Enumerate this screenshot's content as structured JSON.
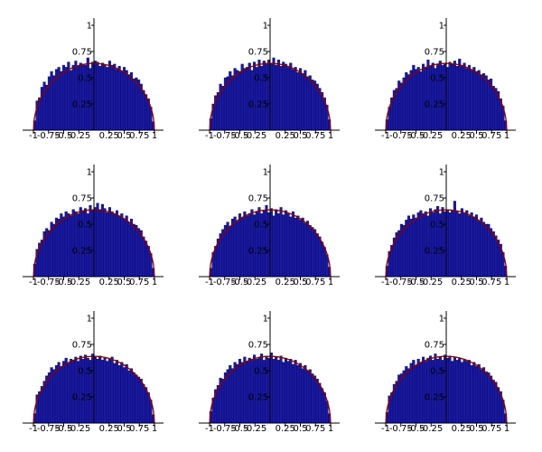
{
  "figure": {
    "background": "#ffffff",
    "bar_color": "#1a1a9e",
    "bar_edge_color": "#00006b",
    "curve_color": "#8b0000",
    "axis_color": "#000000"
  },
  "chart_data": [
    {
      "type": "bar",
      "xlim": [
        -1,
        1
      ],
      "ylim": [
        0,
        1
      ],
      "xticks": [
        "-1",
        "-0.75",
        "-0.5",
        "-0.25",
        "0.25",
        "0.5",
        "0.75",
        "1"
      ],
      "xtick_values": [
        -1,
        -0.75,
        -0.5,
        -0.25,
        0.25,
        0.5,
        0.75,
        1
      ],
      "yticks": [
        "0.25",
        "0.5",
        "0.75",
        "1"
      ],
      "ytick_values": [
        0.25,
        0.5,
        0.75,
        1
      ],
      "bins": 50,
      "values": [
        0.09,
        0.28,
        0.31,
        0.41,
        0.46,
        0.43,
        0.51,
        0.56,
        0.52,
        0.58,
        0.6,
        0.56,
        0.62,
        0.6,
        0.65,
        0.57,
        0.62,
        0.66,
        0.61,
        0.64,
        0.63,
        0.62,
        0.69,
        0.59,
        0.65,
        0.66,
        0.65,
        0.61,
        0.64,
        0.62,
        0.6,
        0.66,
        0.62,
        0.63,
        0.58,
        0.61,
        0.56,
        0.6,
        0.57,
        0.53,
        0.55,
        0.49,
        0.5,
        0.48,
        0.44,
        0.38,
        0.34,
        0.3,
        0.22,
        0.08
      ],
      "curve": "semicircle"
    },
    {
      "type": "bar",
      "xlim": [
        -1,
        1
      ],
      "ylim": [
        0,
        1
      ],
      "xticks": [
        "-1",
        "-0.75",
        "-0.5",
        "-0.25",
        "0.25",
        "0.5",
        "0.75",
        "1"
      ],
      "xtick_values": [
        -1,
        -0.75,
        -0.5,
        -0.25,
        0.25,
        0.5,
        0.75,
        1
      ],
      "yticks": [
        "0.25",
        "0.5",
        "0.75",
        "1"
      ],
      "ytick_values": [
        0.25,
        0.5,
        0.75,
        1
      ],
      "bins": 50,
      "values": [
        0.11,
        0.25,
        0.33,
        0.36,
        0.44,
        0.42,
        0.5,
        0.51,
        0.56,
        0.52,
        0.59,
        0.57,
        0.56,
        0.63,
        0.59,
        0.6,
        0.64,
        0.57,
        0.65,
        0.6,
        0.67,
        0.61,
        0.66,
        0.64,
        0.67,
        0.64,
        0.69,
        0.62,
        0.67,
        0.61,
        0.65,
        0.63,
        0.6,
        0.64,
        0.58,
        0.6,
        0.55,
        0.59,
        0.54,
        0.57,
        0.51,
        0.52,
        0.48,
        0.47,
        0.44,
        0.4,
        0.36,
        0.31,
        0.24,
        0.1
      ],
      "curve": "semicircle"
    },
    {
      "type": "bar",
      "xlim": [
        -1,
        1
      ],
      "ylim": [
        0,
        1
      ],
      "xticks": [
        "-1",
        "-0.75",
        "-0.5",
        "-0.25",
        "0.25",
        "0.5",
        "0.75",
        "1"
      ],
      "xtick_values": [
        -1,
        -0.75,
        -0.5,
        -0.25,
        0.25,
        0.5,
        0.75,
        1
      ],
      "yticks": [
        "0.25",
        "0.5",
        "0.75",
        "1"
      ],
      "ytick_values": [
        0.25,
        0.5,
        0.75,
        1
      ],
      "bins": 50,
      "values": [
        0.1,
        0.22,
        0.31,
        0.38,
        0.4,
        0.47,
        0.45,
        0.5,
        0.55,
        0.53,
        0.57,
        0.62,
        0.58,
        0.6,
        0.56,
        0.63,
        0.6,
        0.67,
        0.61,
        0.64,
        0.59,
        0.63,
        0.66,
        0.62,
        0.64,
        0.6,
        0.65,
        0.63,
        0.66,
        0.61,
        0.68,
        0.62,
        0.64,
        0.59,
        0.62,
        0.57,
        0.6,
        0.56,
        0.57,
        0.53,
        0.54,
        0.52,
        0.48,
        0.49,
        0.42,
        0.4,
        0.37,
        0.3,
        0.23,
        0.09
      ],
      "curve": "semicircle"
    },
    {
      "type": "bar",
      "xlim": [
        -1,
        1
      ],
      "ylim": [
        0,
        1
      ],
      "xticks": [
        "-1",
        "-0.75",
        "-0.5",
        "-0.25",
        "0.25",
        "0.5",
        "0.75",
        "1"
      ],
      "xtick_values": [
        -1,
        -0.75,
        -0.5,
        -0.25,
        0.25,
        0.5,
        0.75,
        1
      ],
      "yticks": [
        "0.25",
        "0.5",
        "0.75",
        "1"
      ],
      "ytick_values": [
        0.25,
        0.5,
        0.75,
        1
      ],
      "bins": 50,
      "values": [
        0.12,
        0.26,
        0.32,
        0.35,
        0.43,
        0.46,
        0.44,
        0.52,
        0.5,
        0.56,
        0.55,
        0.6,
        0.57,
        0.62,
        0.6,
        0.58,
        0.64,
        0.62,
        0.6,
        0.66,
        0.63,
        0.65,
        0.6,
        0.68,
        0.63,
        0.66,
        0.7,
        0.64,
        0.69,
        0.65,
        0.61,
        0.66,
        0.62,
        0.6,
        0.63,
        0.58,
        0.6,
        0.55,
        0.58,
        0.52,
        0.55,
        0.5,
        0.49,
        0.46,
        0.44,
        0.38,
        0.34,
        0.29,
        0.22,
        0.08
      ],
      "curve": "semicircle"
    },
    {
      "type": "bar",
      "xlim": [
        -1,
        1
      ],
      "ylim": [
        0,
        1
      ],
      "xticks": [
        "-1",
        "-0.75",
        "-0.5",
        "-0.25",
        "0.25",
        "0.5",
        "0.75",
        "1"
      ],
      "xtick_values": [
        -1,
        -0.75,
        -0.5,
        -0.25,
        0.25,
        0.5,
        0.75,
        1
      ],
      "yticks": [
        "0.25",
        "0.5",
        "0.75",
        "1"
      ],
      "ytick_values": [
        0.25,
        0.5,
        0.75,
        1
      ],
      "bins": 50,
      "values": [
        0.08,
        0.23,
        0.29,
        0.36,
        0.41,
        0.45,
        0.49,
        0.52,
        0.48,
        0.55,
        0.57,
        0.53,
        0.6,
        0.56,
        0.62,
        0.58,
        0.6,
        0.64,
        0.59,
        0.62,
        0.66,
        0.6,
        0.63,
        0.68,
        0.61,
        0.65,
        0.58,
        0.64,
        0.6,
        0.66,
        0.59,
        0.63,
        0.6,
        0.57,
        0.62,
        0.56,
        0.58,
        0.54,
        0.56,
        0.51,
        0.53,
        0.49,
        0.47,
        0.45,
        0.41,
        0.38,
        0.33,
        0.28,
        0.21,
        0.09
      ],
      "curve": "semicircle"
    },
    {
      "type": "bar",
      "xlim": [
        -1,
        1
      ],
      "ylim": [
        0,
        1
      ],
      "xticks": [
        "-1",
        "-0.75",
        "-0.5",
        "-0.25",
        "0.25",
        "0.5",
        "0.75",
        "1"
      ],
      "xtick_values": [
        -1,
        -0.75,
        -0.5,
        -0.25,
        0.25,
        0.5,
        0.75,
        1
      ],
      "yticks": [
        "0.25",
        "0.5",
        "0.75",
        "1"
      ],
      "ytick_values": [
        0.25,
        0.5,
        0.75,
        1
      ],
      "bins": 50,
      "values": [
        0.1,
        0.24,
        0.3,
        0.37,
        0.42,
        0.44,
        0.5,
        0.49,
        0.54,
        0.58,
        0.55,
        0.59,
        0.56,
        0.61,
        0.63,
        0.6,
        0.62,
        0.58,
        0.65,
        0.61,
        0.64,
        0.67,
        0.6,
        0.66,
        0.62,
        0.64,
        0.61,
        0.63,
        0.72,
        0.62,
        0.6,
        0.65,
        0.61,
        0.63,
        0.58,
        0.61,
        0.57,
        0.59,
        0.53,
        0.56,
        0.52,
        0.5,
        0.5,
        0.46,
        0.43,
        0.39,
        0.35,
        0.31,
        0.23,
        0.1
      ],
      "curve": "semicircle"
    },
    {
      "type": "bar",
      "xlim": [
        -1,
        1
      ],
      "ylim": [
        0,
        1
      ],
      "xticks": [
        "-1",
        "-0.75",
        "-0.5",
        "-0.25",
        "0.25",
        "0.5",
        "0.75",
        "1"
      ],
      "xtick_values": [
        -1,
        -0.75,
        -0.5,
        -0.25,
        0.25,
        0.5,
        0.75,
        1
      ],
      "yticks": [
        "0.25",
        "0.5",
        "0.75",
        "1"
      ],
      "ytick_values": [
        0.25,
        0.5,
        0.75,
        1
      ],
      "bins": 50,
      "values": [
        0.09,
        0.27,
        0.3,
        0.35,
        0.4,
        0.45,
        0.48,
        0.53,
        0.51,
        0.55,
        0.58,
        0.54,
        0.59,
        0.62,
        0.57,
        0.61,
        0.6,
        0.63,
        0.59,
        0.64,
        0.61,
        0.65,
        0.62,
        0.6,
        0.66,
        0.63,
        0.61,
        0.64,
        0.6,
        0.62,
        0.59,
        0.61,
        0.63,
        0.57,
        0.6,
        0.55,
        0.58,
        0.53,
        0.56,
        0.5,
        0.52,
        0.48,
        0.46,
        0.44,
        0.42,
        0.37,
        0.34,
        0.29,
        0.22,
        0.08
      ],
      "curve": "semicircle"
    },
    {
      "type": "bar",
      "xlim": [
        -1,
        1
      ],
      "ylim": [
        0,
        1
      ],
      "xticks": [
        "-1",
        "-0.75",
        "-0.5",
        "-0.25",
        "0.25",
        "0.5",
        "0.75",
        "1"
      ],
      "xtick_values": [
        -1,
        -0.75,
        -0.5,
        -0.25,
        0.25,
        0.5,
        0.75,
        1
      ],
      "yticks": [
        "0.25",
        "0.5",
        "0.75",
        "1"
      ],
      "ytick_values": [
        0.25,
        0.5,
        0.75,
        1
      ],
      "bins": 50,
      "values": [
        0.11,
        0.24,
        0.32,
        0.36,
        0.43,
        0.42,
        0.48,
        0.51,
        0.55,
        0.52,
        0.58,
        0.56,
        0.61,
        0.58,
        0.63,
        0.59,
        0.62,
        0.6,
        0.65,
        0.61,
        0.63,
        0.66,
        0.6,
        0.64,
        0.62,
        0.67,
        0.61,
        0.63,
        0.6,
        0.64,
        0.58,
        0.62,
        0.59,
        0.61,
        0.56,
        0.6,
        0.55,
        0.57,
        0.52,
        0.55,
        0.5,
        0.51,
        0.47,
        0.45,
        0.42,
        0.38,
        0.33,
        0.29,
        0.21,
        0.09
      ],
      "curve": "semicircle"
    },
    {
      "type": "bar",
      "xlim": [
        -1,
        1
      ],
      "ylim": [
        0,
        1
      ],
      "xticks": [
        "-1",
        "-0.75",
        "-0.5",
        "-0.25",
        "0.25",
        "0.5",
        "0.75",
        "1"
      ],
      "xtick_values": [
        -1,
        -0.75,
        -0.5,
        -0.25,
        0.25,
        0.5,
        0.75,
        1
      ],
      "yticks": [
        "0.25",
        "0.5",
        "0.75",
        "1"
      ],
      "ytick_values": [
        0.25,
        0.5,
        0.75,
        1
      ],
      "bins": 50,
      "values": [
        0.1,
        0.26,
        0.29,
        0.37,
        0.4,
        0.46,
        0.47,
        0.5,
        0.54,
        0.52,
        0.57,
        0.6,
        0.55,
        0.61,
        0.58,
        0.63,
        0.59,
        0.62,
        0.64,
        0.6,
        0.66,
        0.61,
        0.63,
        0.6,
        0.65,
        0.62,
        0.64,
        0.59,
        0.63,
        0.6,
        0.62,
        0.58,
        0.61,
        0.59,
        0.6,
        0.55,
        0.58,
        0.54,
        0.56,
        0.51,
        0.53,
        0.49,
        0.48,
        0.45,
        0.41,
        0.39,
        0.34,
        0.3,
        0.22,
        0.09
      ],
      "curve": "semicircle"
    }
  ]
}
